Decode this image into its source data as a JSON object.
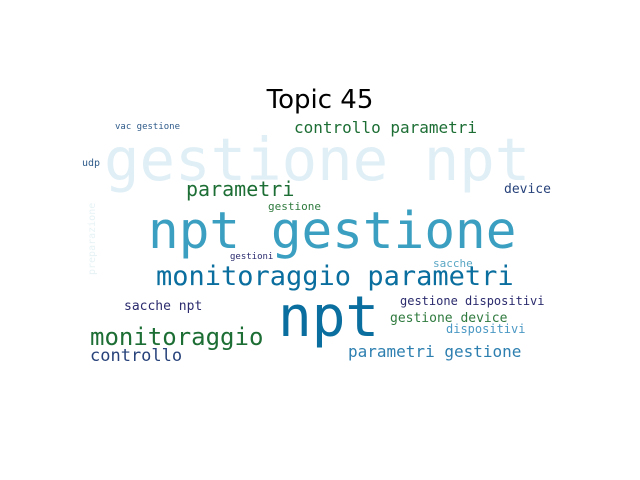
{
  "title": "Topic 45",
  "words": [
    {
      "text": "gestione npt",
      "color": "#e0eff6"
    },
    {
      "text": "npt gestione",
      "color": "#3a9fc0"
    },
    {
      "text": "npt",
      "color": "#0a6e9e"
    },
    {
      "text": "monitoraggio parametri",
      "color": "#0a6e9e"
    },
    {
      "text": "monitoraggio",
      "color": "#1d6e35"
    },
    {
      "text": "parametri",
      "color": "#1d6e35"
    },
    {
      "text": "controllo parametri",
      "color": "#1d6e35"
    },
    {
      "text": "parametri gestione",
      "color": "#2d7fb0"
    },
    {
      "text": "controllo",
      "color": "#27427a"
    },
    {
      "text": "device",
      "color": "#27427a"
    },
    {
      "text": "sacche npt",
      "color": "#2b2b6e"
    },
    {
      "text": "gestione dispositivi",
      "color": "#2b2b6e"
    },
    {
      "text": "gestione device",
      "color": "#2f7a3e"
    },
    {
      "text": "dispositivi",
      "color": "#4a98c4"
    },
    {
      "text": "gestione",
      "color": "#2f7a3e"
    },
    {
      "text": "sacche",
      "color": "#5aa7c4"
    },
    {
      "text": "gestioni",
      "color": "#2b2b6e"
    },
    {
      "text": "udp",
      "color": "#2f5b8a"
    },
    {
      "text": "vac gestione",
      "color": "#2f5b8a"
    },
    {
      "text": "preparazione",
      "color": "#e6f2f5"
    }
  ]
}
